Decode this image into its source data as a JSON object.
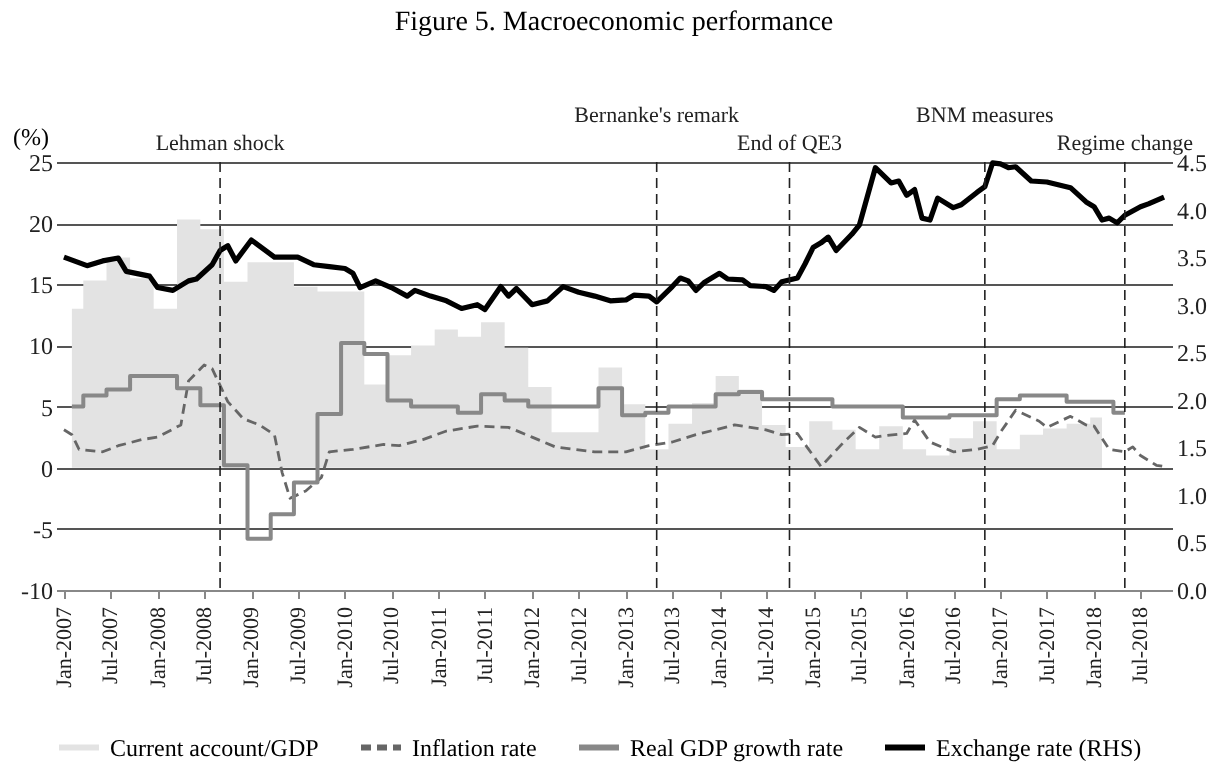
{
  "chart_data": {
    "type": "line",
    "title": "Figure 5. Macroeconomic performance",
    "ylabel": "(%)",
    "xlim": [
      "2006-12",
      "2018-11"
    ],
    "xticks": [
      {
        "value": "2007-01",
        "label": "Jan-2007"
      },
      {
        "value": "2007-07",
        "label": "Jul-2007"
      },
      {
        "value": "2008-01",
        "label": "Jan-2008"
      },
      {
        "value": "2008-07",
        "label": "Jul-2008"
      },
      {
        "value": "2009-01",
        "label": "Jan-2009"
      },
      {
        "value": "2009-07",
        "label": "Jul-2009"
      },
      {
        "value": "2010-01",
        "label": "Jan-2010"
      },
      {
        "value": "2010-07",
        "label": "Jul-2010"
      },
      {
        "value": "2011-01",
        "label": "Jan-2011"
      },
      {
        "value": "2011-07",
        "label": "Jul-2011"
      },
      {
        "value": "2012-01",
        "label": "Jan-2012"
      },
      {
        "value": "2012-07",
        "label": "Jul-2012"
      },
      {
        "value": "2013-01",
        "label": "Jan-2013"
      },
      {
        "value": "2013-07",
        "label": "Jul-2013"
      },
      {
        "value": "2014-01",
        "label": "Jan-2014"
      },
      {
        "value": "2014-07",
        "label": "Jul-2014"
      },
      {
        "value": "2015-01",
        "label": "Jan-2015"
      },
      {
        "value": "2015-07",
        "label": "Jul-2015"
      },
      {
        "value": "2016-01",
        "label": "Jan-2016"
      },
      {
        "value": "2016-07",
        "label": "Jul-2016"
      },
      {
        "value": "2017-01",
        "label": "Jan-2017"
      },
      {
        "value": "2017-07",
        "label": "Jul-2017"
      },
      {
        "value": "2018-01",
        "label": "Jan-2018"
      },
      {
        "value": "2018-07",
        "label": "Jul-2018"
      }
    ],
    "ylim": [
      -10,
      25
    ],
    "yticks": [
      -10,
      -5,
      0,
      5,
      10,
      15,
      20,
      25
    ],
    "y2lim": [
      0,
      4.5
    ],
    "y2ticks": [
      {
        "value": 0,
        "label": "0.0"
      },
      0.5,
      {
        "value": 1,
        "label": "1.0"
      },
      1.5,
      {
        "value": 2,
        "label": "2.0"
      },
      2.5,
      {
        "value": 3,
        "label": "3.0"
      },
      3.5,
      {
        "value": 4,
        "label": "4.0"
      },
      4.5
    ],
    "grid": "y",
    "legend": "bottom",
    "marker": "none",
    "series": [
      {
        "name": "Current account/GDP",
        "type": "area",
        "color": "#e3e3e3",
        "x": [
          "2007-02",
          "2007-05",
          "2007-08",
          "2007-11",
          "2008-02",
          "2008-05",
          "2008-08",
          "2008-11",
          "2009-02",
          "2009-05",
          "2009-08",
          "2009-11",
          "2010-02",
          "2010-05",
          "2010-08",
          "2010-11",
          "2011-02",
          "2011-05",
          "2011-08",
          "2011-11",
          "2012-02",
          "2012-05",
          "2012-08",
          "2012-11",
          "2013-02",
          "2013-05",
          "2013-08",
          "2013-11",
          "2014-02",
          "2014-05",
          "2014-08",
          "2014-11",
          "2015-02",
          "2015-05",
          "2015-08",
          "2015-11",
          "2016-02",
          "2016-05",
          "2016-08",
          "2016-11",
          "2017-02",
          "2017-05",
          "2017-08",
          "2017-11",
          "2018-02"
        ],
        "values": [
          13.0,
          15.3,
          17.2,
          15.5,
          13.0,
          20.3,
          19.5,
          15.2,
          16.8,
          16.8,
          14.8,
          14.4,
          14.4,
          6.8,
          9.2,
          10.0,
          11.3,
          10.7,
          11.9,
          9.8,
          6.6,
          2.9,
          2.9,
          8.2,
          5.2,
          1.5,
          3.6,
          5.3,
          7.5,
          6.4,
          3.5,
          1.7,
          3.8,
          3.1,
          1.5,
          3.4,
          1.5,
          1.0,
          2.4,
          3.8,
          1.5,
          2.7,
          3.2,
          3.6,
          4.1
        ]
      },
      {
        "name": "Inflation rate",
        "type": "line",
        "line_style": "dashed",
        "color": "#666666",
        "x": [
          "2007-01",
          "2007-02",
          "2007-03",
          "2007-06",
          "2007-08",
          "2007-11",
          "2008-01",
          "2008-04",
          "2008-05",
          "2008-07",
          "2008-08",
          "2008-10",
          "2008-12",
          "2009-02",
          "2009-04",
          "2009-05",
          "2009-06",
          "2009-08",
          "2009-10",
          "2009-11",
          "2010-02",
          "2010-06",
          "2010-08",
          "2010-11",
          "2011-02",
          "2011-06",
          "2011-10",
          "2012-01",
          "2012-04",
          "2012-09",
          "2013-01",
          "2013-04",
          "2013-07",
          "2013-10",
          "2014-03",
          "2014-07",
          "2014-09",
          "2014-11",
          "2014-12",
          "2015-02",
          "2015-05",
          "2015-07",
          "2015-09",
          "2015-10",
          "2016-01",
          "2016-02",
          "2016-04",
          "2016-07",
          "2016-10",
          "2016-12",
          "2017-01",
          "2017-03",
          "2017-06",
          "2017-07",
          "2017-10",
          "2017-12",
          "2018-01",
          "2018-03",
          "2018-05",
          "2018-06",
          "2018-07",
          "2018-09",
          "2018-10"
        ],
        "values": [
          3.1,
          2.7,
          1.5,
          1.3,
          1.8,
          2.3,
          2.5,
          3.5,
          7.1,
          8.4,
          8.1,
          5.4,
          4.0,
          3.5,
          2.7,
          -0.4,
          -2.5,
          -1.9,
          -0.8,
          1.3,
          1.5,
          1.9,
          1.8,
          2.3,
          3.0,
          3.4,
          3.3,
          2.5,
          1.7,
          1.3,
          1.3,
          1.8,
          2.1,
          2.7,
          3.5,
          3.1,
          2.7,
          2.8,
          1.9,
          0.1,
          2.1,
          3.3,
          2.5,
          2.6,
          2.8,
          3.9,
          2.1,
          1.3,
          1.5,
          1.8,
          2.9,
          4.7,
          3.8,
          3.3,
          4.2,
          3.5,
          3.4,
          1.5,
          1.3,
          1.7,
          1.0,
          0.2,
          0.1
        ]
      },
      {
        "name": "Real GDP growth rate",
        "type": "step",
        "color": "#888888",
        "x": [
          "2007-02",
          "2007-05",
          "2007-08",
          "2007-11",
          "2008-02",
          "2008-05",
          "2008-08",
          "2008-11",
          "2009-02",
          "2009-05",
          "2009-08",
          "2009-11",
          "2010-02",
          "2010-05",
          "2010-08",
          "2010-11",
          "2011-02",
          "2011-05",
          "2011-08",
          "2011-11",
          "2012-02",
          "2012-05",
          "2012-08",
          "2012-11",
          "2013-02",
          "2013-05",
          "2013-08",
          "2013-11",
          "2014-02",
          "2014-05",
          "2014-08",
          "2014-11",
          "2015-02",
          "2015-05",
          "2015-08",
          "2015-11",
          "2016-02",
          "2016-05",
          "2016-08",
          "2016-11",
          "2017-02",
          "2017-05",
          "2017-08",
          "2017-11",
          "2018-02",
          "2018-05"
        ],
        "values": [
          5.0,
          5.9,
          6.4,
          7.5,
          7.5,
          6.5,
          5.1,
          0.2,
          -5.8,
          -3.8,
          -1.2,
          4.4,
          10.2,
          9.3,
          5.5,
          5.0,
          5.0,
          4.5,
          6.0,
          5.5,
          5.0,
          5.0,
          5.0,
          6.5,
          4.3,
          4.5,
          5.0,
          5.0,
          6.0,
          6.2,
          5.6,
          5.6,
          5.6,
          5.0,
          5.0,
          5.0,
          4.1,
          4.1,
          4.3,
          4.3,
          5.6,
          5.9,
          5.9,
          5.4,
          5.4,
          4.5
        ]
      },
      {
        "name": "Exchange rate (RHS)",
        "type": "line",
        "axis": "y2",
        "color": "#000000",
        "x": [
          "2007-01",
          "2007-04",
          "2007-06",
          "2007-08",
          "2007-09",
          "2007-12",
          "2008-01",
          "2008-03",
          "2008-05",
          "2008-06",
          "2008-08",
          "2008-09",
          "2008-10",
          "2008-11",
          "2009-01",
          "2009-04",
          "2009-07",
          "2009-09",
          "2009-11",
          "2010-01",
          "2010-02",
          "2010-03",
          "2010-05",
          "2010-07",
          "2010-09",
          "2010-10",
          "2010-12",
          "2011-02",
          "2011-04",
          "2011-06",
          "2011-07",
          "2011-09",
          "2011-10",
          "2011-11",
          "2012-01",
          "2012-03",
          "2012-05",
          "2012-07",
          "2012-09",
          "2012-11",
          "2013-01",
          "2013-02",
          "2013-04",
          "2013-05",
          "2013-07",
          "2013-08",
          "2013-09",
          "2013-10",
          "2013-11",
          "2014-01",
          "2014-02",
          "2014-04",
          "2014-05",
          "2014-07",
          "2014-08",
          "2014-09",
          "2014-11",
          "2014-12",
          "2015-01",
          "2015-02",
          "2015-03",
          "2015-04",
          "2015-06",
          "2015-07",
          "2015-09",
          "2015-11",
          "2015-12",
          "2016-01",
          "2016-02",
          "2016-03",
          "2016-04",
          "2016-05",
          "2016-07",
          "2016-08",
          "2016-10",
          "2016-11",
          "2016-12",
          "2017-01",
          "2017-02",
          "2017-03",
          "2017-05",
          "2017-07",
          "2017-10",
          "2017-12",
          "2018-01",
          "2018-02",
          "2018-03",
          "2018-04",
          "2018-05",
          "2018-07",
          "2018-08",
          "2018-10"
        ],
        "values": [
          3.5,
          3.41,
          3.46,
          3.49,
          3.35,
          3.3,
          3.18,
          3.15,
          3.25,
          3.27,
          3.42,
          3.57,
          3.62,
          3.46,
          3.68,
          3.5,
          3.5,
          3.42,
          3.4,
          3.38,
          3.33,
          3.18,
          3.25,
          3.18,
          3.09,
          3.15,
          3.09,
          3.04,
          2.96,
          3.0,
          2.95,
          3.19,
          3.09,
          3.17,
          3.0,
          3.04,
          3.19,
          3.13,
          3.09,
          3.04,
          3.05,
          3.1,
          3.09,
          3.03,
          3.19,
          3.28,
          3.25,
          3.15,
          3.23,
          3.33,
          3.27,
          3.26,
          3.2,
          3.19,
          3.15,
          3.24,
          3.28,
          3.43,
          3.6,
          3.65,
          3.71,
          3.57,
          3.74,
          3.84,
          4.44,
          4.28,
          4.3,
          4.15,
          4.21,
          3.91,
          3.89,
          4.12,
          4.02,
          4.05,
          4.18,
          4.24,
          4.49,
          4.48,
          4.44,
          4.45,
          4.3,
          4.29,
          4.23,
          4.08,
          4.03,
          3.89,
          3.91,
          3.86,
          3.94,
          4.03,
          4.06,
          4.13
        ]
      }
    ],
    "ref_lines": [
      {
        "axis": "x",
        "value": "2008-09",
        "label": "Lehman shock",
        "line_style": "dashed"
      },
      {
        "axis": "x",
        "value": "2013-05",
        "label": "Bernanke's remark",
        "line_style": "dashed"
      },
      {
        "axis": "x",
        "value": "2014-10",
        "label": "End of QE3",
        "line_style": "dashed"
      },
      {
        "axis": "x",
        "value": "2016-11",
        "label": "BNM measures",
        "line_style": "dashed"
      },
      {
        "axis": "x",
        "value": "2018-05",
        "label": "Regime change",
        "line_style": "dashed"
      }
    ]
  }
}
